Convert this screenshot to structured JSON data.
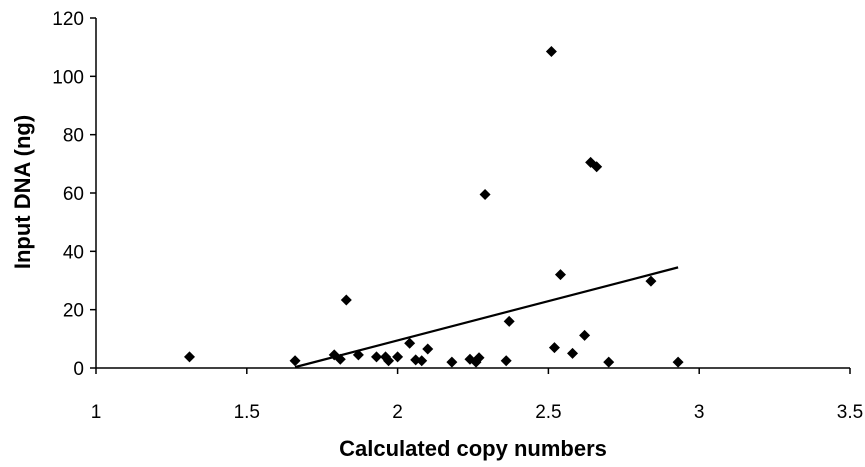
{
  "chart_data": {
    "type": "scatter",
    "title": "",
    "xlabel": "Calculated copy numbers",
    "ylabel": "Input DNA (ng)",
    "xlim": [
      1,
      3.5
    ],
    "ylim": [
      0,
      120
    ],
    "xticks": [
      1,
      1.5,
      2,
      2.5,
      3,
      3.5
    ],
    "yticks": [
      0,
      20,
      40,
      60,
      80,
      100,
      120
    ],
    "xtick_labels": [
      "1",
      "1.5",
      "2",
      "2.5",
      "3",
      "3.5"
    ],
    "ytick_labels": [
      "0",
      "20",
      "40",
      "60",
      "80",
      "100",
      "120"
    ],
    "grid": false,
    "legend": "none",
    "colors": {
      "marker": "#000000",
      "trendline": "#000000",
      "axis": "#000000"
    },
    "series": [
      {
        "marker": "diamond",
        "x": [
          1.31,
          1.66,
          1.79,
          1.81,
          1.83,
          1.87,
          1.93,
          1.96,
          1.97,
          2.0,
          2.04,
          2.06,
          2.08,
          2.1,
          2.18,
          2.24,
          2.26,
          2.27,
          2.29,
          2.36,
          2.37,
          2.51,
          2.52,
          2.54,
          2.58,
          2.62,
          2.64,
          2.66,
          2.7,
          2.84,
          2.93
        ],
        "y": [
          3.8,
          2.5,
          4.5,
          3.0,
          23.3,
          4.5,
          3.8,
          3.8,
          2.5,
          3.8,
          8.5,
          2.8,
          2.5,
          6.5,
          2.0,
          3.0,
          2.0,
          3.5,
          59.5,
          2.5,
          16.0,
          108.5,
          7.0,
          32.0,
          5.0,
          11.2,
          70.5,
          69.0,
          2.0,
          29.8,
          2.0
        ]
      }
    ],
    "trendline": {
      "type": "linear",
      "x": [
        1.66,
        2.93
      ],
      "y": [
        0.3,
        34.5
      ]
    }
  }
}
